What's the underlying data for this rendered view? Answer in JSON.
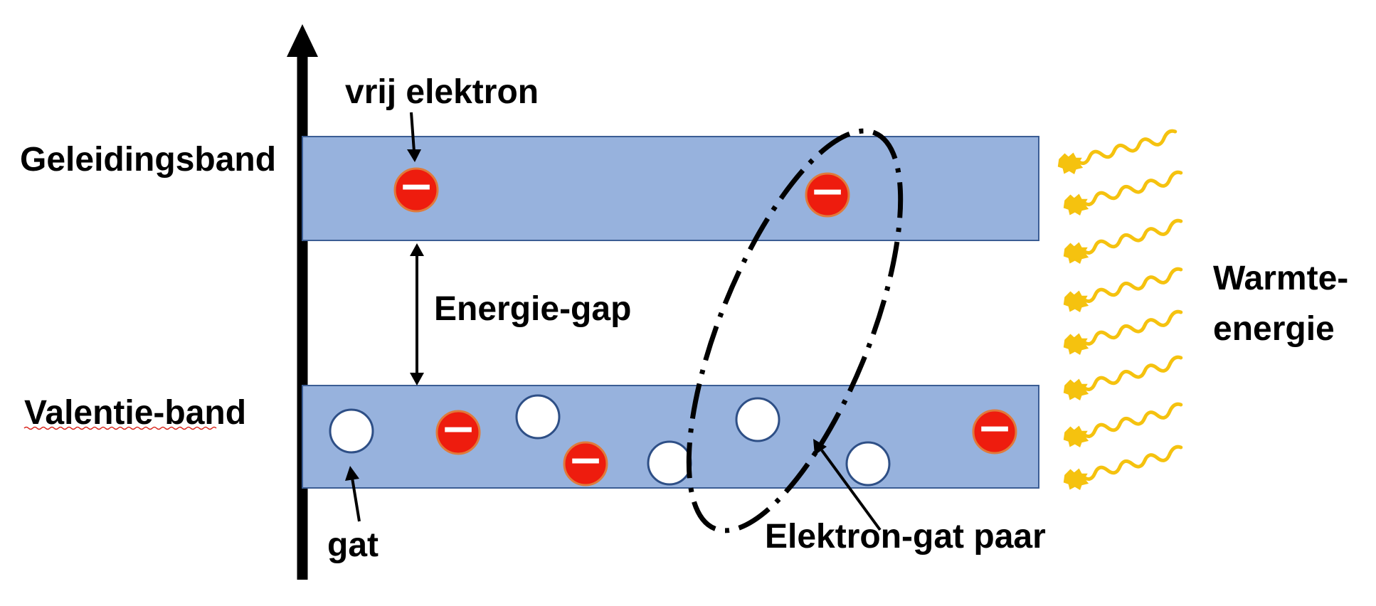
{
  "labels": {
    "conduction_band": "Geleidingsband",
    "valence_band": "Valentie-band",
    "free_electron": "vrij elektron",
    "energy_gap": "Energie-gap",
    "hole": "gat",
    "electron_hole_pair": "Elektron-gat paar",
    "heat_energy_line1": "Warmte-",
    "heat_energy_line2": "energie"
  },
  "colors": {
    "band_fill": "#97b2dd",
    "band_stroke": "#3b5d94",
    "electron_fill": "#ee1c0e",
    "electron_stroke": "#e07a3a",
    "hole_fill": "#ffffff",
    "hole_stroke": "#2e4f86",
    "heat": "#f5c20f",
    "axis": "#000000"
  },
  "electron_sign": "−"
}
